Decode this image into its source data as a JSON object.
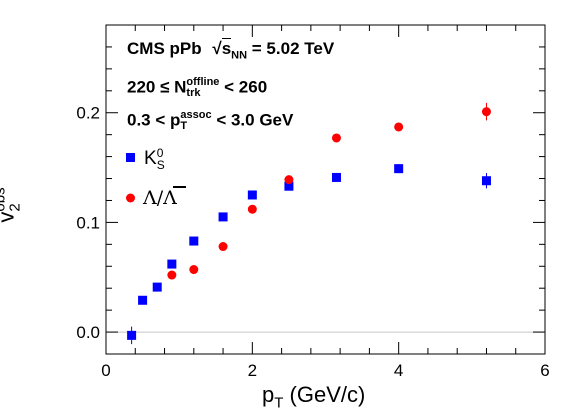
{
  "annotations": {
    "line1_main": "CMS pPb",
    "line1_sqrt": "s",
    "line1_sub": "NN",
    "line1_value": "= 5.02 TeV",
    "line2_prefix": "220 ≤ N",
    "line2_sup": "offline",
    "line2_sub": "trk",
    "line2_suffix": "< 260",
    "line3_prefix": "0.3 < p",
    "line3_sup": "assoc",
    "line3_sub": "T",
    "line3_suffix": "< 3.0 GeV"
  },
  "legend": {
    "k0s_main": "K",
    "k0s_sup": "0",
    "k0s_sub": "S",
    "lambda_label": "Λ/Λ"
  },
  "axes": {
    "x_main": "p",
    "x_sub": "T",
    "x_unit": " (GeV/c)",
    "y_main": "v",
    "y_sup": "obs",
    "y_sub": "2"
  },
  "chart_data": {
    "type": "scatter",
    "xlim": [
      0,
      6
    ],
    "ylim": [
      -0.02,
      0.28
    ],
    "xticks": [
      0,
      2,
      4,
      6
    ],
    "yticks": [
      0.0,
      0.1,
      0.2
    ],
    "xtick_labels": [
      "0",
      "2",
      "4",
      "6"
    ],
    "ytick_labels": [
      "0.0",
      "0.1",
      "0.2"
    ],
    "grid": false,
    "zero_line": true,
    "legend_position": "upper-left",
    "series": [
      {
        "name": "K0S",
        "marker": "square",
        "color": "#0000ff",
        "x": [
          0.35,
          0.5,
          0.7,
          0.9,
          1.2,
          1.6,
          2.0,
          2.5,
          3.15,
          4.0,
          5.2
        ],
        "y": [
          -0.003,
          0.029,
          0.041,
          0.062,
          0.083,
          0.105,
          0.125,
          0.133,
          0.141,
          0.149,
          0.138
        ],
        "err": [
          0.008,
          0.003,
          0.002,
          0.002,
          0.002,
          0.002,
          0.002,
          0.003,
          0.003,
          0.004,
          0.007
        ]
      },
      {
        "name": "Λ/Λ",
        "marker": "circle",
        "color": "#ff0000",
        "x": [
          0.9,
          1.2,
          1.6,
          2.0,
          2.5,
          3.15,
          4.0,
          5.2
        ],
        "y": [
          0.052,
          0.057,
          0.078,
          0.112,
          0.139,
          0.177,
          0.187,
          0.201
        ],
        "err": [
          0.003,
          0.002,
          0.002,
          0.002,
          0.002,
          0.003,
          0.003,
          0.008
        ]
      }
    ]
  }
}
